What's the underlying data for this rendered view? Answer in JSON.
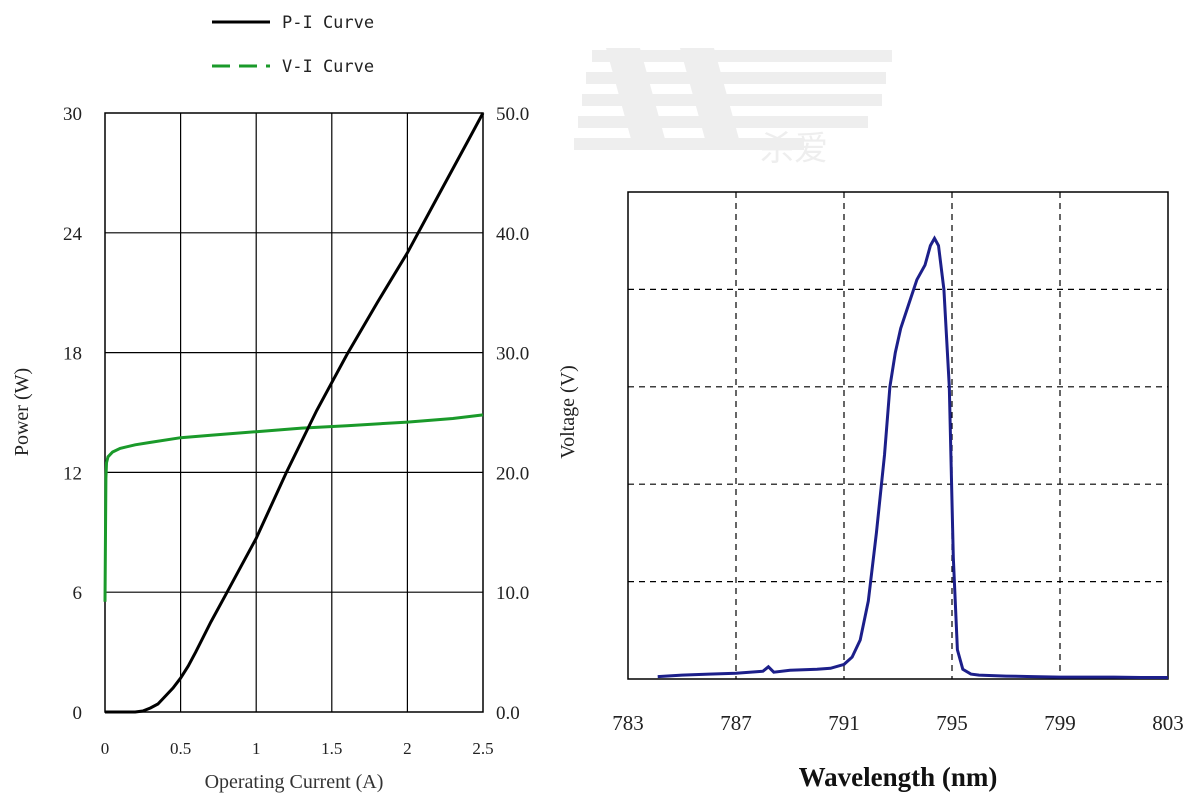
{
  "legend": {
    "entries": [
      {
        "label": "P-I Curve",
        "color": "#000000",
        "dash": "solid"
      },
      {
        "label": "V-I Curve",
        "color": "#1a9a2a",
        "dash": "dashed"
      }
    ]
  },
  "watermark": {
    "text": "杀爱"
  },
  "chart_data": [
    {
      "type": "line",
      "xlabel": "Operating Current (A)",
      "ylabel": "Power (W)",
      "y2label": "Voltage (V)",
      "xlim": [
        0,
        2.5
      ],
      "ylim": [
        0,
        30
      ],
      "y2lim": [
        0,
        50
      ],
      "xticks": [
        0,
        0.5,
        1,
        1.5,
        2,
        2.5
      ],
      "xtick_labels": [
        "0",
        "0.5",
        "1",
        "1.5",
        "2",
        "2.5"
      ],
      "yticks": [
        0,
        6,
        12,
        18,
        24,
        30
      ],
      "ytick_labels": [
        "0",
        "6",
        "12",
        "18",
        "24",
        "30"
      ],
      "y2ticks": [
        0,
        10,
        20,
        30,
        40,
        50
      ],
      "y2tick_labels": [
        "0.0",
        "10.0",
        "20.0",
        "30.0",
        "40.0",
        "50.0"
      ],
      "grid": true,
      "legend_position": "top-left",
      "series": [
        {
          "name": "P-I Curve",
          "axis": "left",
          "color": "#000000",
          "x": [
            0,
            0.2,
            0.25,
            0.3,
            0.35,
            0.4,
            0.45,
            0.5,
            0.55,
            0.6,
            0.7,
            0.8,
            0.9,
            1.0,
            1.2,
            1.4,
            1.6,
            1.8,
            2.0,
            2.2,
            2.4,
            2.5
          ],
          "values": [
            0,
            0,
            0.05,
            0.2,
            0.4,
            0.8,
            1.2,
            1.7,
            2.3,
            3.0,
            4.5,
            5.9,
            7.3,
            8.7,
            12.0,
            15.1,
            17.9,
            20.5,
            23.0,
            25.8,
            28.6,
            30.0
          ]
        },
        {
          "name": "V-I Curve",
          "axis": "right",
          "color": "#1a9a2a",
          "x": [
            0,
            0.003,
            0.006,
            0.01,
            0.02,
            0.05,
            0.1,
            0.2,
            0.3,
            0.5,
            0.7,
            1.0,
            1.3,
            1.6,
            2.0,
            2.3,
            2.5
          ],
          "values": [
            9.2,
            15.0,
            19.5,
            20.8,
            21.3,
            21.7,
            22.0,
            22.3,
            22.5,
            22.9,
            23.1,
            23.4,
            23.7,
            23.9,
            24.2,
            24.5,
            24.8
          ]
        }
      ]
    },
    {
      "type": "line",
      "xlabel": "Wavelength (nm)",
      "ylabel": "",
      "xlim": [
        783,
        803
      ],
      "ylim": [
        0,
        1
      ],
      "xticks": [
        783,
        787,
        791,
        795,
        799,
        803
      ],
      "xtick_labels": [
        "783",
        "787",
        "791",
        "795",
        "799",
        "803"
      ],
      "yticks": [
        0,
        0.2,
        0.4,
        0.6,
        0.8,
        1
      ],
      "grid": true,
      "grid_style": "dashed",
      "series": [
        {
          "name": "",
          "color": "#1c1f8a",
          "x": [
            784.1,
            785,
            786,
            787,
            788,
            788.2,
            788.4,
            789,
            790,
            790.5,
            791,
            791.3,
            791.6,
            791.9,
            792.2,
            792.5,
            792.7,
            792.9,
            793.1,
            793.4,
            793.7,
            794.0,
            794.2,
            794.35,
            794.5,
            794.7,
            794.9,
            795.05,
            795.2,
            795.4,
            795.7,
            796,
            797,
            798,
            799,
            800,
            801,
            802,
            803
          ],
          "values": [
            0.005,
            0.008,
            0.01,
            0.012,
            0.016,
            0.025,
            0.014,
            0.018,
            0.02,
            0.022,
            0.03,
            0.045,
            0.08,
            0.16,
            0.3,
            0.46,
            0.6,
            0.67,
            0.72,
            0.77,
            0.82,
            0.85,
            0.89,
            0.905,
            0.89,
            0.8,
            0.6,
            0.25,
            0.06,
            0.02,
            0.01,
            0.008,
            0.006,
            0.005,
            0.004,
            0.004,
            0.004,
            0.003,
            0.003
          ]
        }
      ]
    }
  ]
}
